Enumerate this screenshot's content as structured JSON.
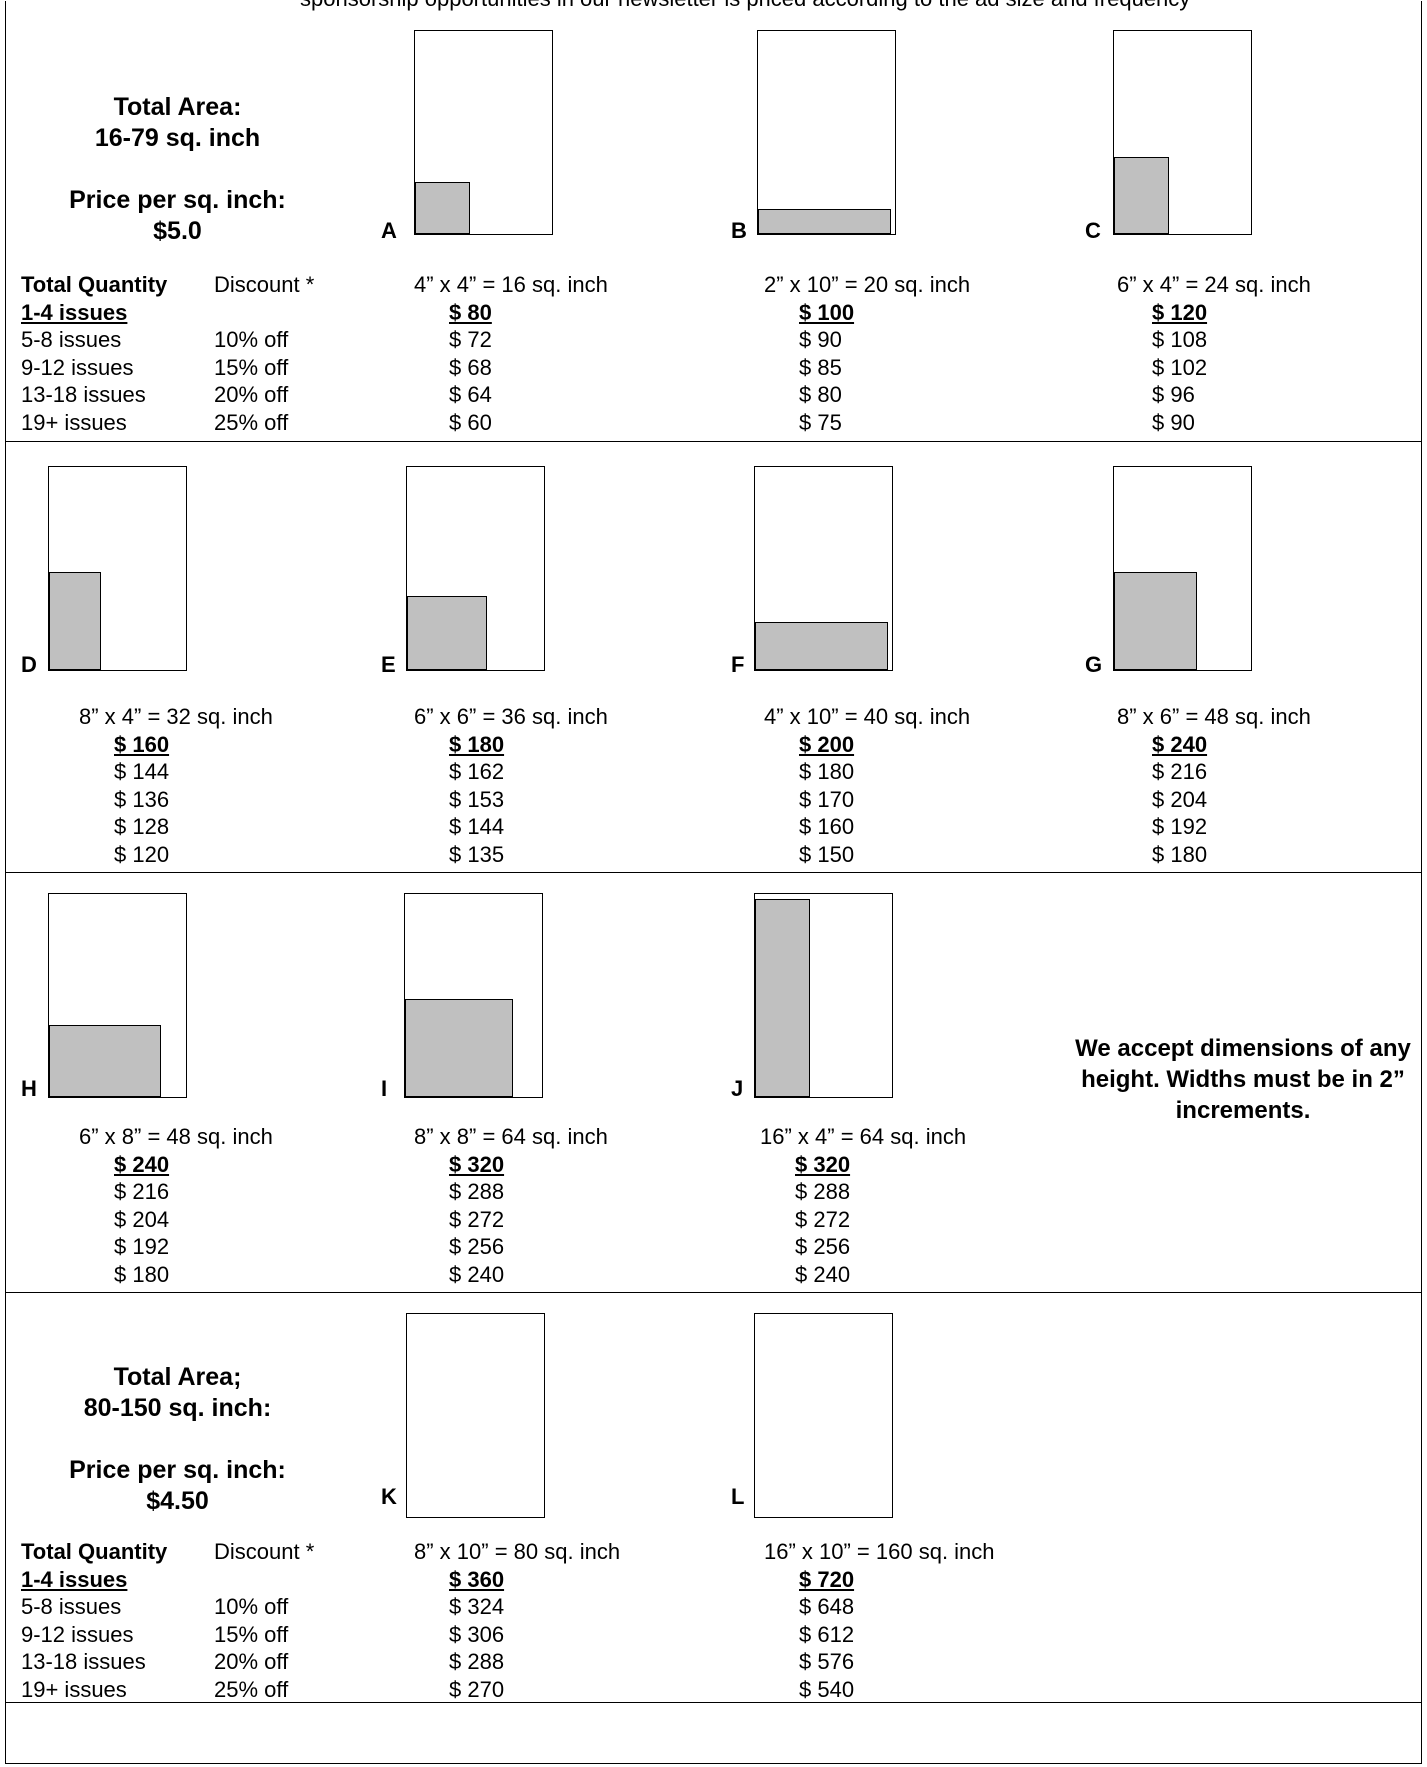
{
  "header_fragment": "sponsorship opportunities in our newsletter is priced according to the ad size and frequency",
  "tier1": {
    "area_label": "Total Area:",
    "area_range": "16-79 sq. inch",
    "ppsi_label": "Price per sq. inch:",
    "ppsi_value": "$5.0"
  },
  "tier2": {
    "area_label": "Total Area;",
    "area_range": "80-150 sq. inch:",
    "ppsi_label": "Price per sq. inch:",
    "ppsi_value": "$4.50"
  },
  "quantity_table": {
    "qty_header": "Total Quantity",
    "disc_header": "Discount *",
    "rows": [
      {
        "qty": "1-4 issues",
        "disc": ""
      },
      {
        "qty": "5-8 issues",
        "disc": "10% off"
      },
      {
        "qty": "9-12 issues",
        "disc": "15% off"
      },
      {
        "qty": "13-18 issues",
        "disc": "20% off"
      },
      {
        "qty": "19+ issues",
        "disc": "25% off"
      }
    ]
  },
  "ads": {
    "A": {
      "letter": "A",
      "dims": "4” x 4” = 16 sq. inch",
      "prices": [
        "$ 80",
        "$ 72",
        "$ 68",
        "$ 64",
        "$ 60"
      ]
    },
    "B": {
      "letter": "B",
      "dims": "2” x 10” = 20 sq. inch",
      "prices": [
        "$ 100",
        "$ 90",
        "$ 85",
        "$ 80",
        "$ 75"
      ]
    },
    "C": {
      "letter": "C",
      "dims": "6” x 4” = 24 sq. inch",
      "prices": [
        "$ 120",
        "$ 108",
        "$ 102",
        "$ 96",
        "$ 90"
      ]
    },
    "D": {
      "letter": "D",
      "dims": "8” x 4” = 32 sq. inch",
      "prices": [
        "$ 160",
        "$ 144",
        "$ 136",
        "$ 128",
        "$ 120"
      ]
    },
    "E": {
      "letter": "E",
      "dims": "6” x 6” = 36 sq. inch",
      "prices": [
        "$ 180",
        "$ 162",
        "$ 153",
        "$ 144",
        "$ 135"
      ]
    },
    "F": {
      "letter": "F",
      "dims": "4” x 10” = 40 sq. inch",
      "prices": [
        "$ 200",
        "$ 180",
        "$ 170",
        "$ 160",
        "$ 150"
      ]
    },
    "G": {
      "letter": "G",
      "dims": "8” x 6” = 48 sq. inch",
      "prices": [
        "$ 240",
        "$ 216",
        "$ 204",
        "$ 192",
        "$ 180"
      ]
    },
    "H": {
      "letter": "H",
      "dims": "6” x 8” = 48 sq. inch",
      "prices": [
        "$ 240",
        "$ 216",
        "$ 204",
        "$ 192",
        "$ 180"
      ]
    },
    "I": {
      "letter": "I",
      "dims": "8” x 8” = 64 sq. inch",
      "prices": [
        "$ 320",
        "$ 288",
        "$ 272",
        "$ 256",
        "$ 240"
      ]
    },
    "J": {
      "letter": "J",
      "dims": "16” x 4” = 64 sq. inch",
      "prices": [
        "$ 320",
        "$ 288",
        "$ 272",
        "$ 256",
        "$ 240"
      ]
    },
    "K": {
      "letter": "K",
      "dims": "8” x 10” = 80 sq. inch",
      "prices": [
        "$ 360",
        "$ 324",
        "$ 306",
        "$ 288",
        "$ 270"
      ]
    },
    "L": {
      "letter": "L",
      "dims": "16” x 10” = 160 sq. inch",
      "prices": [
        "$ 720",
        "$ 648",
        "$ 612",
        "$ 576",
        "$ 540"
      ]
    }
  },
  "note": "We accept dimensions of any height. Widths must be in 2” increments.",
  "colors": {
    "ad_fill": "#c0c0c0",
    "border": "#000000"
  }
}
